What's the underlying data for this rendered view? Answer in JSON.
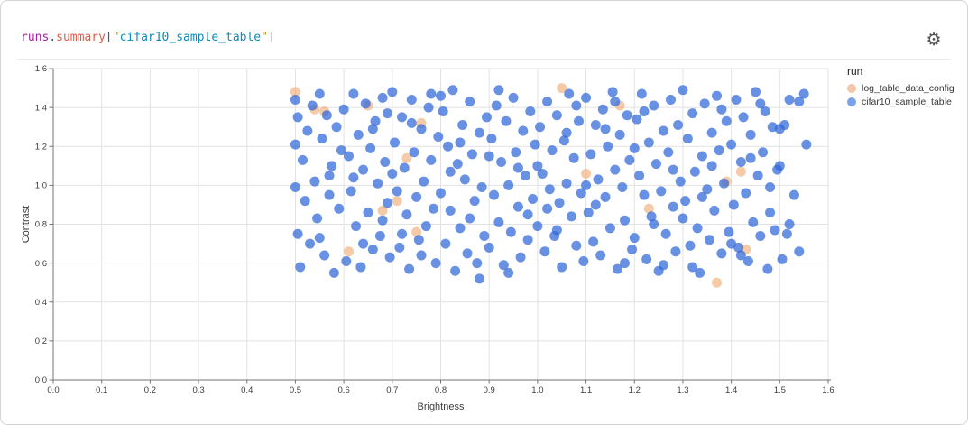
{
  "panel": {
    "title_text": "runs.summary[\"cifar10_sample_table\"]",
    "title_tokens": [
      {
        "text": "runs",
        "color": "#a325a0"
      },
      {
        "text": ".",
        "color": "#50565e"
      },
      {
        "text": "summary",
        "color": "#df5a49"
      },
      {
        "text": "[",
        "color": "#50565e"
      },
      {
        "text": "\"",
        "color": "#c18401"
      },
      {
        "text": "cifar10_sample_table",
        "color": "#0e8ab8"
      },
      {
        "text": "\"",
        "color": "#c18401"
      },
      {
        "text": "]",
        "color": "#50565e"
      }
    ],
    "gear_icon": "⚙"
  },
  "chart_data": {
    "type": "scatter",
    "title": "runs.summary[\"cifar10_sample_table\"]",
    "xlabel": "Brightness",
    "ylabel": "Contrast",
    "xlim": [
      0,
      1.6
    ],
    "ylim": [
      0,
      1.6
    ],
    "x_ticks": [
      "0.0",
      "0.1",
      "0.2",
      "0.3",
      "0.4",
      "0.5",
      "0.6",
      "0.7",
      "0.8",
      "0.9",
      "1.0",
      "1.1",
      "1.2",
      "1.3",
      "1.4",
      "1.5",
      "1.6"
    ],
    "y_ticks": [
      "0.0",
      "0.2",
      "0.4",
      "0.6",
      "0.8",
      "1.0",
      "1.2",
      "1.4",
      "1.6"
    ],
    "grid": true,
    "grid_color": "#e2e2e2",
    "axis_color": "#737373",
    "tick_label_color": "#3d3d3d",
    "legend_title": "run",
    "legend_position": "right",
    "point_radius": 5.5,
    "series": [
      {
        "name": "log_table_data_config",
        "color": "#efa76d",
        "opacity": 0.6,
        "legend_color": "#f2c6a7",
        "points": [
          [
            0.5,
            1.48
          ],
          [
            0.54,
            1.39
          ],
          [
            0.56,
            1.38
          ],
          [
            0.65,
            1.41
          ],
          [
            0.76,
            1.32
          ],
          [
            0.73,
            1.14
          ],
          [
            0.71,
            0.92
          ],
          [
            0.68,
            0.87
          ],
          [
            0.75,
            0.76
          ],
          [
            0.61,
            0.66
          ],
          [
            1.05,
            1.5
          ],
          [
            1.17,
            1.41
          ],
          [
            1.1,
            1.06
          ],
          [
            1.42,
            1.07
          ],
          [
            1.39,
            1.02
          ],
          [
            1.23,
            0.88
          ],
          [
            1.43,
            0.67
          ],
          [
            1.37,
            0.5
          ]
        ]
      },
      {
        "name": "cifar10_sample_table",
        "color": "#2f66d8",
        "opacity": 0.72,
        "legend_color": "#7ba2e8",
        "points": [
          [
            0.5,
            1.44
          ],
          [
            0.505,
            1.35
          ],
          [
            0.5,
            1.21
          ],
          [
            0.5,
            0.99
          ],
          [
            0.505,
            0.75
          ],
          [
            0.51,
            0.58
          ],
          [
            0.515,
            1.13
          ],
          [
            0.52,
            0.92
          ],
          [
            0.525,
            1.28
          ],
          [
            0.53,
            0.7
          ],
          [
            0.535,
            1.41
          ],
          [
            0.54,
            1.02
          ],
          [
            0.545,
            0.83
          ],
          [
            0.55,
            1.47
          ],
          [
            0.555,
            1.24
          ],
          [
            0.56,
            0.64
          ],
          [
            0.565,
            1.36
          ],
          [
            0.57,
            0.95
          ],
          [
            0.575,
            1.1
          ],
          [
            0.58,
            0.55
          ],
          [
            0.585,
            1.3
          ],
          [
            0.59,
            0.88
          ],
          [
            0.595,
            1.18
          ],
          [
            0.55,
            0.73
          ],
          [
            0.57,
            1.05
          ],
          [
            0.6,
            1.39
          ],
          [
            0.605,
            0.61
          ],
          [
            0.61,
            1.15
          ],
          [
            0.615,
            0.97
          ],
          [
            0.62,
            1.47
          ],
          [
            0.625,
            0.79
          ],
          [
            0.63,
            1.26
          ],
          [
            0.635,
            0.58
          ],
          [
            0.64,
            1.08
          ],
          [
            0.645,
            1.42
          ],
          [
            0.65,
            0.86
          ],
          [
            0.655,
            1.19
          ],
          [
            0.66,
            0.67
          ],
          [
            0.665,
            1.33
          ],
          [
            0.67,
            1.01
          ],
          [
            0.675,
            0.74
          ],
          [
            0.68,
            1.45
          ],
          [
            0.685,
            1.12
          ],
          [
            0.69,
            0.91
          ],
          [
            0.695,
            0.63
          ],
          [
            0.62,
            1.04
          ],
          [
            0.66,
            1.29
          ],
          [
            0.69,
            1.37
          ],
          [
            0.64,
            0.7
          ],
          [
            0.68,
            0.82
          ],
          [
            0.7,
            1.48
          ],
          [
            0.705,
            1.22
          ],
          [
            0.71,
            0.97
          ],
          [
            0.715,
            0.68
          ],
          [
            0.72,
            1.35
          ],
          [
            0.725,
            1.09
          ],
          [
            0.73,
            0.85
          ],
          [
            0.735,
            0.57
          ],
          [
            0.74,
            1.44
          ],
          [
            0.745,
            1.17
          ],
          [
            0.75,
            0.94
          ],
          [
            0.755,
            0.72
          ],
          [
            0.76,
            1.29
          ],
          [
            0.765,
            1.02
          ],
          [
            0.77,
            0.79
          ],
          [
            0.775,
            1.4
          ],
          [
            0.78,
            1.13
          ],
          [
            0.785,
            0.88
          ],
          [
            0.79,
            0.6
          ],
          [
            0.795,
            1.25
          ],
          [
            0.72,
            0.75
          ],
          [
            0.76,
            0.64
          ],
          [
            0.74,
            1.32
          ],
          [
            0.78,
            1.47
          ],
          [
            0.7,
            1.06
          ],
          [
            0.8,
            0.96
          ],
          [
            0.805,
            1.38
          ],
          [
            0.81,
            0.7
          ],
          [
            0.815,
            1.2
          ],
          [
            0.82,
            0.87
          ],
          [
            0.825,
            1.49
          ],
          [
            0.83,
            0.56
          ],
          [
            0.835,
            1.11
          ],
          [
            0.84,
            0.78
          ],
          [
            0.845,
            1.31
          ],
          [
            0.85,
            1.03
          ],
          [
            0.855,
            0.65
          ],
          [
            0.86,
            1.43
          ],
          [
            0.865,
            1.16
          ],
          [
            0.87,
            0.92
          ],
          [
            0.875,
            0.6
          ],
          [
            0.88,
            1.27
          ],
          [
            0.885,
            0.99
          ],
          [
            0.89,
            0.74
          ],
          [
            0.895,
            1.35
          ],
          [
            0.82,
            1.07
          ],
          [
            0.86,
            0.83
          ],
          [
            0.88,
            0.52
          ],
          [
            0.84,
            1.22
          ],
          [
            0.8,
            1.46
          ],
          [
            0.9,
            0.68
          ],
          [
            0.905,
            1.24
          ],
          [
            0.91,
            0.95
          ],
          [
            0.915,
            1.41
          ],
          [
            0.92,
            0.81
          ],
          [
            0.925,
            1.12
          ],
          [
            0.93,
            0.59
          ],
          [
            0.935,
            1.33
          ],
          [
            0.94,
            1.0
          ],
          [
            0.945,
            0.76
          ],
          [
            0.95,
            1.45
          ],
          [
            0.955,
            1.17
          ],
          [
            0.96,
            0.89
          ],
          [
            0.965,
            0.63
          ],
          [
            0.97,
            1.28
          ],
          [
            0.975,
            1.05
          ],
          [
            0.98,
            0.72
          ],
          [
            0.985,
            1.38
          ],
          [
            0.99,
            0.93
          ],
          [
            0.995,
            1.21
          ],
          [
            0.92,
            1.49
          ],
          [
            0.96,
            1.09
          ],
          [
            0.94,
            0.55
          ],
          [
            0.9,
            1.15
          ],
          [
            0.98,
            0.85
          ],
          [
            1.0,
            0.79
          ],
          [
            1.005,
            1.3
          ],
          [
            1.01,
            1.06
          ],
          [
            1.015,
            0.66
          ],
          [
            1.02,
            1.43
          ],
          [
            1.025,
            0.98
          ],
          [
            1.03,
            1.18
          ],
          [
            1.035,
            0.74
          ],
          [
            1.04,
            1.36
          ],
          [
            1.045,
            0.91
          ],
          [
            1.05,
            0.58
          ],
          [
            1.055,
            1.23
          ],
          [
            1.06,
            1.01
          ],
          [
            1.065,
            1.47
          ],
          [
            1.07,
            0.84
          ],
          [
            1.075,
            1.14
          ],
          [
            1.08,
            0.69
          ],
          [
            1.085,
            1.33
          ],
          [
            1.09,
            0.96
          ],
          [
            1.095,
            0.61
          ],
          [
            1.02,
            0.88
          ],
          [
            1.06,
            1.27
          ],
          [
            1.08,
            1.41
          ],
          [
            1.0,
            1.1
          ],
          [
            1.04,
            0.77
          ],
          [
            1.1,
            1.45
          ],
          [
            1.105,
            0.86
          ],
          [
            1.11,
            1.16
          ],
          [
            1.115,
            0.71
          ],
          [
            1.12,
            1.31
          ],
          [
            1.125,
            1.03
          ],
          [
            1.13,
            0.64
          ],
          [
            1.135,
            1.39
          ],
          [
            1.14,
            0.94
          ],
          [
            1.145,
            1.2
          ],
          [
            1.15,
            0.78
          ],
          [
            1.155,
            1.48
          ],
          [
            1.16,
            1.08
          ],
          [
            1.165,
            0.57
          ],
          [
            1.17,
            1.26
          ],
          [
            1.175,
            0.99
          ],
          [
            1.18,
            0.82
          ],
          [
            1.185,
            1.36
          ],
          [
            1.19,
            1.13
          ],
          [
            1.195,
            0.67
          ],
          [
            1.12,
            0.9
          ],
          [
            1.16,
            1.43
          ],
          [
            1.18,
            0.6
          ],
          [
            1.1,
            1.0
          ],
          [
            1.14,
            1.29
          ],
          [
            1.2,
            0.73
          ],
          [
            1.205,
            1.34
          ],
          [
            1.21,
            1.05
          ],
          [
            1.215,
            1.47
          ],
          [
            1.22,
            0.95
          ],
          [
            1.225,
            0.62
          ],
          [
            1.23,
            1.22
          ],
          [
            1.235,
            0.84
          ],
          [
            1.24,
            1.41
          ],
          [
            1.245,
            1.11
          ],
          [
            1.25,
            0.56
          ],
          [
            1.255,
            0.97
          ],
          [
            1.26,
            1.28
          ],
          [
            1.265,
            0.75
          ],
          [
            1.27,
            1.17
          ],
          [
            1.275,
            1.44
          ],
          [
            1.28,
            0.89
          ],
          [
            1.285,
            0.66
          ],
          [
            1.29,
            1.31
          ],
          [
            1.295,
            1.02
          ],
          [
            1.22,
            1.38
          ],
          [
            1.26,
            0.59
          ],
          [
            1.28,
            1.08
          ],
          [
            1.24,
            0.8
          ],
          [
            1.2,
            1.19
          ],
          [
            1.3,
            1.49
          ],
          [
            1.305,
            0.92
          ],
          [
            1.31,
            1.24
          ],
          [
            1.315,
            0.69
          ],
          [
            1.32,
            1.37
          ],
          [
            1.325,
            1.07
          ],
          [
            1.33,
            0.78
          ],
          [
            1.335,
            0.55
          ],
          [
            1.34,
            1.15
          ],
          [
            1.345,
            1.42
          ],
          [
            1.35,
            0.98
          ],
          [
            1.355,
            0.72
          ],
          [
            1.36,
            1.27
          ],
          [
            1.365,
            0.87
          ],
          [
            1.37,
            1.46
          ],
          [
            1.375,
            1.18
          ],
          [
            1.38,
            0.65
          ],
          [
            1.385,
            1.01
          ],
          [
            1.39,
            1.33
          ],
          [
            1.395,
            0.76
          ],
          [
            1.32,
            0.58
          ],
          [
            1.36,
            1.1
          ],
          [
            1.38,
            1.39
          ],
          [
            1.3,
            0.83
          ],
          [
            1.34,
            0.94
          ],
          [
            1.4,
            1.21
          ],
          [
            1.405,
            0.9
          ],
          [
            1.41,
            1.44
          ],
          [
            1.415,
            0.68
          ],
          [
            1.42,
            1.12
          ],
          [
            1.425,
            1.35
          ],
          [
            1.43,
            0.96
          ],
          [
            1.435,
            0.61
          ],
          [
            1.44,
            1.26
          ],
          [
            1.445,
            0.81
          ],
          [
            1.45,
            1.48
          ],
          [
            1.455,
            1.05
          ],
          [
            1.46,
            0.74
          ],
          [
            1.465,
            1.17
          ],
          [
            1.47,
            1.38
          ],
          [
            1.475,
            0.57
          ],
          [
            1.48,
            0.99
          ],
          [
            1.485,
            1.3
          ],
          [
            1.49,
            0.77
          ],
          [
            1.495,
            1.08
          ],
          [
            1.42,
            0.64
          ],
          [
            1.46,
            1.42
          ],
          [
            1.48,
            0.86
          ],
          [
            1.44,
            1.14
          ],
          [
            1.4,
            0.7
          ],
          [
            1.5,
            1.29
          ],
          [
            1.505,
            0.62
          ],
          [
            1.51,
            1.31
          ],
          [
            1.515,
            0.75
          ],
          [
            1.52,
            1.44
          ],
          [
            1.53,
            0.95
          ],
          [
            1.54,
            1.43
          ],
          [
            1.55,
            1.47
          ],
          [
            1.555,
            1.21
          ],
          [
            1.5,
            1.1
          ],
          [
            1.52,
            0.8
          ],
          [
            1.54,
            0.66
          ]
        ]
      }
    ]
  }
}
